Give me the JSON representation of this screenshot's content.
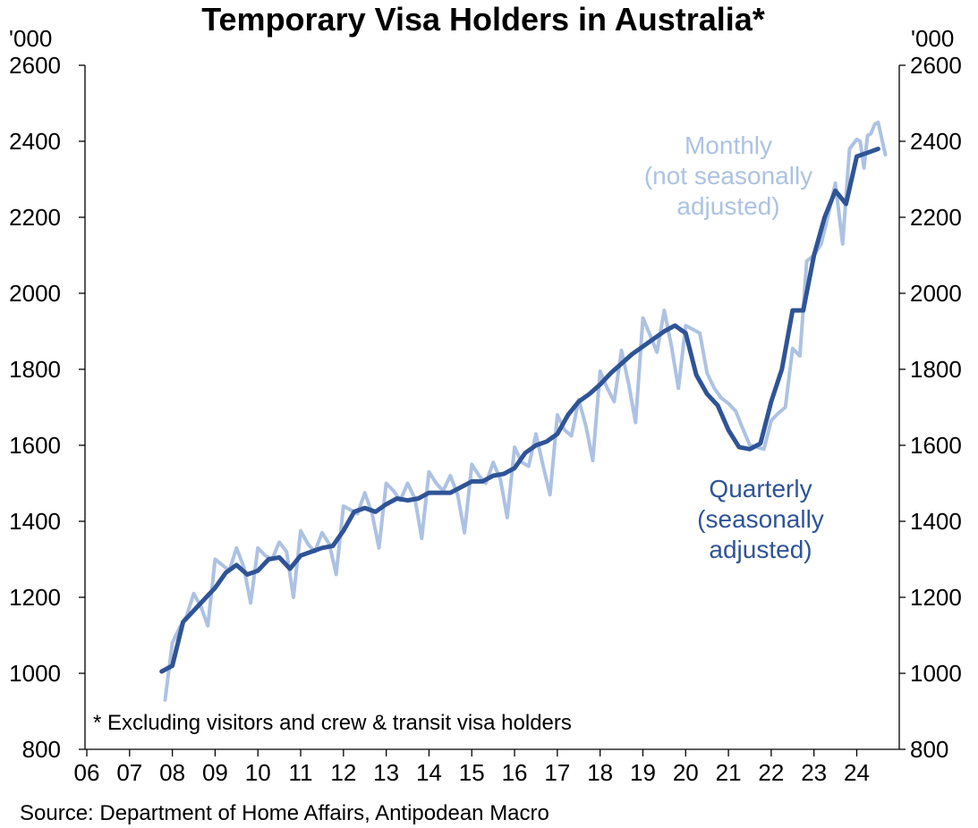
{
  "chart_data": {
    "type": "line",
    "title": "Temporary Visa Holders in Australia*",
    "left_unit": "'000",
    "right_unit": "'000",
    "ylim": [
      800,
      2600
    ],
    "y_ticks": [
      "800",
      "1000",
      "1200",
      "1400",
      "1600",
      "1800",
      "2000",
      "2200",
      "2400",
      "2600"
    ],
    "xlim": [
      2006,
      2024.8
    ],
    "x_tick_labels": [
      "06",
      "07",
      "08",
      "09",
      "10",
      "11",
      "12",
      "13",
      "14",
      "15",
      "16",
      "17",
      "18",
      "19",
      "20",
      "21",
      "22",
      "23",
      "24"
    ],
    "grid": false,
    "footnote": "* Excluding visitors and crew & transit visa holders",
    "source": "Source: Department of Home Affairs, Antipodean Macro",
    "annotations": {
      "monthly": [
        "Monthly",
        "(not seasonally",
        "adjusted)"
      ],
      "quarterly": [
        "Quarterly",
        "(seasonally",
        "adjusted)"
      ]
    },
    "colors": {
      "quarterly": "#2f5496",
      "monthly": "#adc2e3",
      "axis": "#000000"
    },
    "series": [
      {
        "key": "quarterly",
        "x": [
          2007.75,
          2008.0,
          2008.25,
          2008.5,
          2008.75,
          2009.0,
          2009.25,
          2009.5,
          2009.75,
          2010.0,
          2010.25,
          2010.5,
          2010.75,
          2011.0,
          2011.25,
          2011.5,
          2011.75,
          2012.0,
          2012.25,
          2012.5,
          2012.75,
          2013.0,
          2013.25,
          2013.5,
          2013.75,
          2014.0,
          2014.25,
          2014.5,
          2014.75,
          2015.0,
          2015.25,
          2015.5,
          2015.75,
          2016.0,
          2016.25,
          2016.5,
          2016.75,
          2017.0,
          2017.25,
          2017.5,
          2017.75,
          2018.0,
          2018.25,
          2018.5,
          2018.75,
          2019.0,
          2019.25,
          2019.5,
          2019.75,
          2020.0,
          2020.25,
          2020.5,
          2020.75,
          2021.0,
          2021.25,
          2021.5,
          2021.75,
          2022.0,
          2022.25,
          2022.5,
          2022.75,
          2023.0,
          2023.25,
          2023.5,
          2023.75,
          2024.0,
          2024.25,
          2024.5
        ],
        "values": [
          1005,
          1020,
          1135,
          1165,
          1195,
          1225,
          1265,
          1285,
          1260,
          1270,
          1300,
          1305,
          1275,
          1310,
          1320,
          1330,
          1335,
          1375,
          1425,
          1435,
          1425,
          1445,
          1460,
          1455,
          1460,
          1475,
          1475,
          1475,
          1490,
          1505,
          1505,
          1520,
          1525,
          1540,
          1580,
          1600,
          1610,
          1630,
          1680,
          1715,
          1735,
          1760,
          1790,
          1815,
          1840,
          1860,
          1880,
          1900,
          1915,
          1895,
          1785,
          1735,
          1705,
          1640,
          1595,
          1590,
          1605,
          1715,
          1800,
          1955,
          1955,
          2100,
          2200,
          2270,
          2235,
          2360,
          2370,
          2380
        ]
      },
      {
        "key": "monthly",
        "x": [
          2007.83,
          2008.0,
          2008.17,
          2008.33,
          2008.5,
          2008.67,
          2008.83,
          2009.0,
          2009.17,
          2009.33,
          2009.5,
          2009.67,
          2009.83,
          2010.0,
          2010.17,
          2010.33,
          2010.5,
          2010.67,
          2010.83,
          2011.0,
          2011.17,
          2011.33,
          2011.5,
          2011.67,
          2011.83,
          2012.0,
          2012.17,
          2012.33,
          2012.5,
          2012.67,
          2012.83,
          2013.0,
          2013.17,
          2013.33,
          2013.5,
          2013.67,
          2013.83,
          2014.0,
          2014.17,
          2014.33,
          2014.5,
          2014.67,
          2014.83,
          2015.0,
          2015.17,
          2015.33,
          2015.5,
          2015.67,
          2015.83,
          2016.0,
          2016.17,
          2016.33,
          2016.5,
          2016.67,
          2016.83,
          2017.0,
          2017.17,
          2017.33,
          2017.5,
          2017.67,
          2017.83,
          2018.0,
          2018.17,
          2018.33,
          2018.5,
          2018.67,
          2018.83,
          2019.0,
          2019.17,
          2019.33,
          2019.5,
          2019.67,
          2019.83,
          2020.0,
          2020.17,
          2020.33,
          2020.5,
          2020.67,
          2020.83,
          2021.0,
          2021.17,
          2021.33,
          2021.5,
          2021.67,
          2021.83,
          2022.0,
          2022.17,
          2022.33,
          2022.5,
          2022.67,
          2022.83,
          2023.0,
          2023.17,
          2023.33,
          2023.5,
          2023.67,
          2023.83,
          2024.0,
          2024.08,
          2024.17,
          2024.25,
          2024.33,
          2024.42,
          2024.5,
          2024.58,
          2024.67
        ],
        "values": [
          930,
          1080,
          1120,
          1150,
          1210,
          1175,
          1125,
          1300,
          1285,
          1270,
          1330,
          1280,
          1185,
          1330,
          1310,
          1300,
          1345,
          1320,
          1200,
          1375,
          1340,
          1320,
          1370,
          1340,
          1260,
          1440,
          1430,
          1420,
          1475,
          1420,
          1330,
          1500,
          1480,
          1455,
          1500,
          1460,
          1355,
          1530,
          1500,
          1480,
          1520,
          1470,
          1370,
          1550,
          1520,
          1500,
          1555,
          1510,
          1410,
          1595,
          1555,
          1545,
          1630,
          1545,
          1470,
          1680,
          1640,
          1625,
          1720,
          1650,
          1560,
          1795,
          1750,
          1715,
          1850,
          1760,
          1660,
          1935,
          1890,
          1845,
          1955,
          1860,
          1750,
          1915,
          1905,
          1895,
          1790,
          1750,
          1725,
          1710,
          1690,
          1645,
          1600,
          1595,
          1590,
          1665,
          1685,
          1700,
          1855,
          1835,
          2085,
          2100,
          2130,
          2205,
          2290,
          2130,
          2380,
          2405,
          2400,
          2330,
          2415,
          2420,
          2445,
          2450,
          2410,
          2365
        ]
      }
    ]
  }
}
